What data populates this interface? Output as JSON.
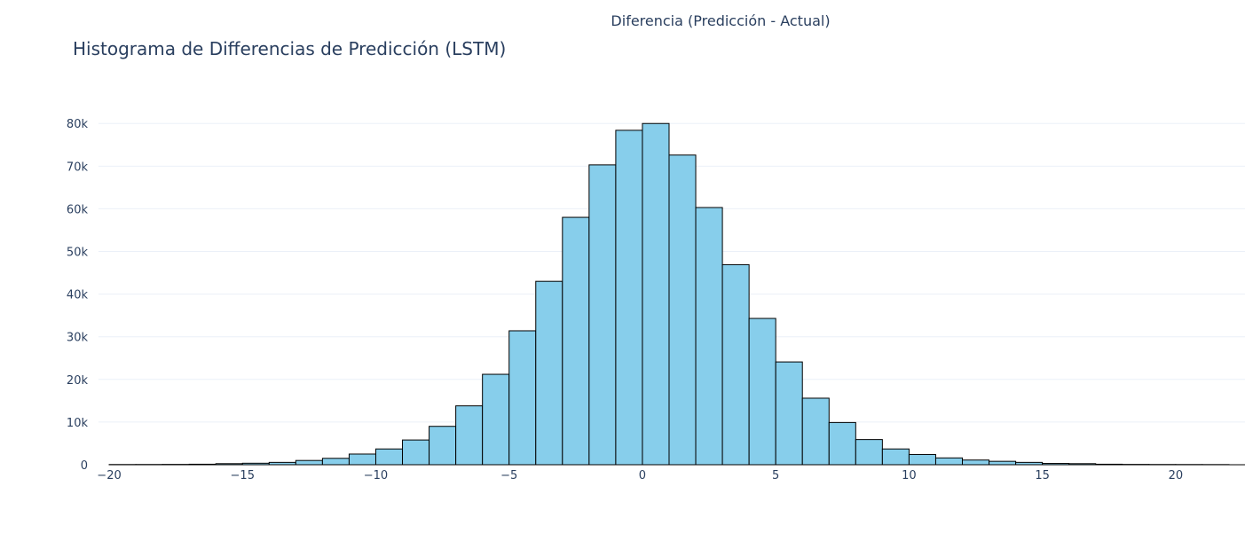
{
  "chart_data": {
    "type": "bar",
    "title": "Histograma de Differencias de Predicción (LSTM)",
    "xlabel": "Diferencia (Predicción - Actual)",
    "ylabel": "",
    "xlim": [
      -20.4,
      22.6
    ],
    "ylim": [
      0,
      84000
    ],
    "bin_width": 1,
    "bin_starts": [
      -20,
      -19,
      -18,
      -17,
      -16,
      -15,
      -14,
      -13,
      -12,
      -11,
      -10,
      -9,
      -8,
      -7,
      -6,
      -5,
      -4,
      -3,
      -2,
      -1,
      0,
      1,
      2,
      3,
      4,
      5,
      6,
      7,
      8,
      9,
      10,
      11,
      12,
      13,
      14,
      15,
      16,
      17,
      18,
      19,
      20,
      21
    ],
    "values": [
      50,
      60,
      80,
      120,
      250,
      350,
      550,
      1000,
      1500,
      2500,
      3700,
      5800,
      9000,
      13800,
      21200,
      31400,
      43000,
      58000,
      70300,
      78400,
      80000,
      72600,
      60300,
      46900,
      34300,
      24100,
      15600,
      9900,
      5900,
      3700,
      2400,
      1600,
      1100,
      800,
      550,
      300,
      250,
      120,
      80,
      60,
      50,
      40
    ],
    "bar_color": "#87ceeb",
    "bar_outline_color": "#000000",
    "x_ticks": [
      -20,
      -15,
      -10,
      -5,
      0,
      5,
      10,
      15,
      20
    ],
    "x_tick_labels": [
      "−20",
      "−15",
      "−10",
      "−5",
      "0",
      "5",
      "10",
      "15",
      "20"
    ],
    "y_ticks": [
      0,
      10000,
      20000,
      30000,
      40000,
      50000,
      60000,
      70000,
      80000
    ],
    "y_tick_labels": [
      "0",
      "10k",
      "20k",
      "30k",
      "40k",
      "50k",
      "60k",
      "70k",
      "80k"
    ],
    "grid": true,
    "gridline_color": "#ebf0f8",
    "text_color": "#2a3f5f"
  }
}
